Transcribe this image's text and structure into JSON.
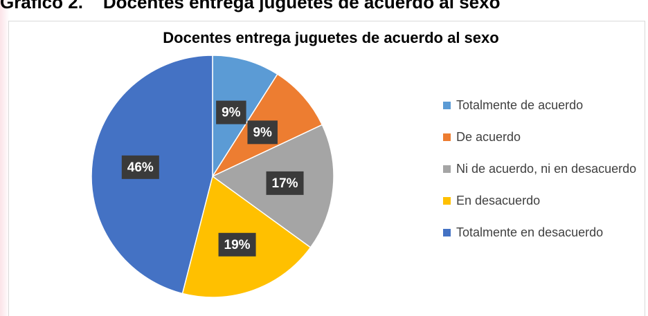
{
  "heading": "Gráfico 2.    Docentes entrega juguetes de acuerdo al sexo",
  "chart_data": {
    "type": "pie",
    "title": "Docentes entrega juguetes de acuerdo al sexo",
    "categories": [
      "Totalmente de acuerdo",
      "De acuerdo",
      "Ni de acuerdo, ni en desacuerdo",
      "En desacuerdo",
      "Totalmente en desacuerdo"
    ],
    "values": [
      9,
      9,
      17,
      19,
      46
    ],
    "value_labels": [
      "9%",
      "9%",
      "17%",
      "19%",
      "46%"
    ],
    "colors": [
      "#5b9bd5",
      "#ed7d31",
      "#a5a5a5",
      "#ffc000",
      "#4472c4"
    ],
    "legend": "right"
  }
}
